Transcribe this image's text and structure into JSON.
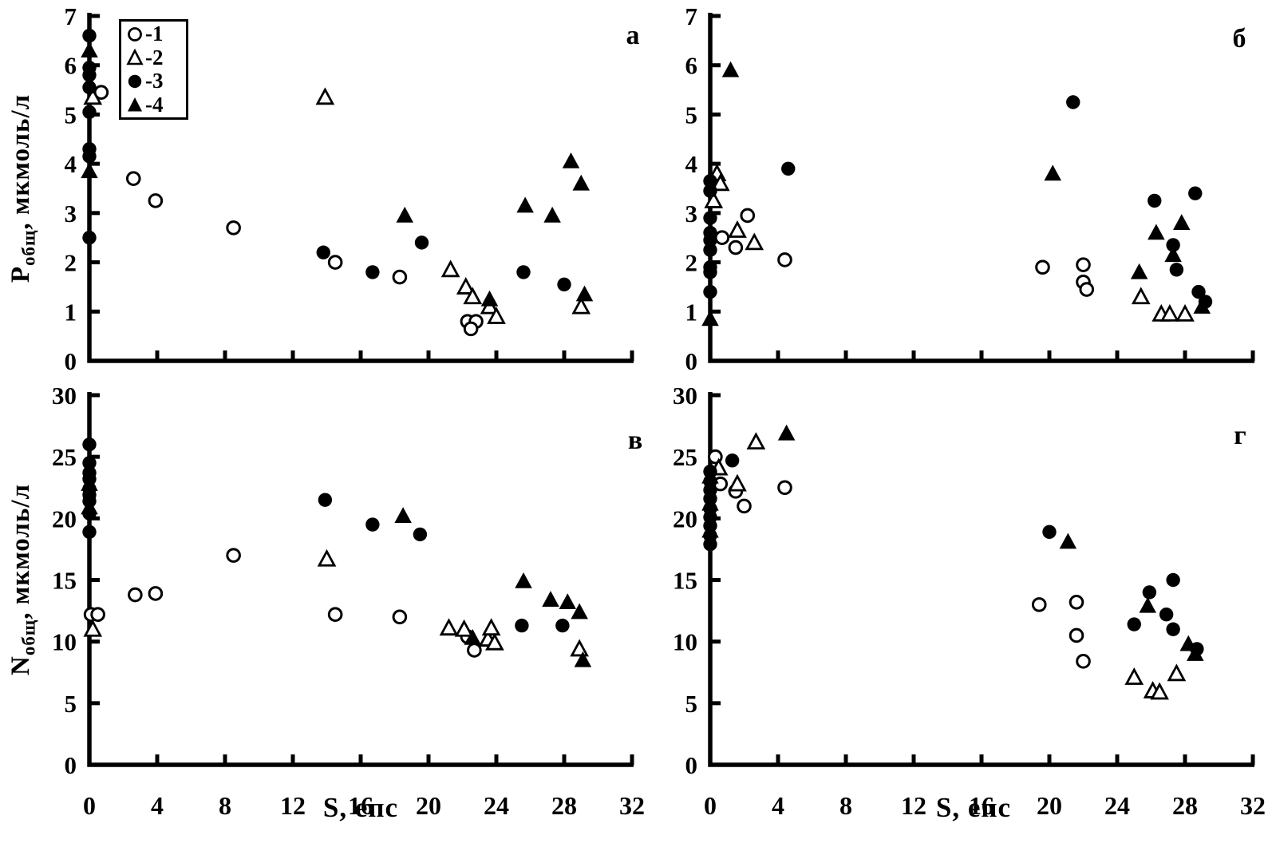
{
  "figure": {
    "x_axis_title": "S, епс",
    "y_axis_titles": [
      {
        "main": "P",
        "sub": "общ",
        "rest": ", мкмоль/л"
      },
      {
        "main": "N",
        "sub": "общ",
        "rest": ", мкмоль/л"
      }
    ],
    "background": "#ffffff",
    "ink_color": "#000000",
    "legend": {
      "position": "top-left-inside-panel-a",
      "entries": [
        {
          "marker": "open-circle",
          "label": "-1"
        },
        {
          "marker": "open-triangle",
          "label": "-2"
        },
        {
          "marker": "filled-circle",
          "label": "-3"
        },
        {
          "marker": "filled-triangle",
          "label": "-4"
        }
      ]
    }
  },
  "chart_data": [
    {
      "type": "scatter",
      "panel_label": "а",
      "position": "top-left",
      "xlabel": "S, епс",
      "ylabel": "Pобщ, мкмоль/л",
      "xlim": [
        0,
        32
      ],
      "ylim": [
        0,
        7
      ],
      "x_ticks": [
        0,
        4,
        8,
        12,
        16,
        20,
        24,
        28,
        32
      ],
      "y_ticks": [
        0,
        1,
        2,
        3,
        4,
        5,
        6,
        7
      ],
      "x_tick_labels_visible": false,
      "grid": false,
      "series": [
        {
          "name": "1",
          "marker": "circle",
          "filled": false,
          "points": [
            [
              0.7,
              5.45
            ],
            [
              2.6,
              3.7
            ],
            [
              3.9,
              3.25
            ],
            [
              8.5,
              2.7
            ],
            [
              14.5,
              2.0
            ],
            [
              18.3,
              1.7
            ],
            [
              22.3,
              0.8
            ],
            [
              22.8,
              0.8
            ],
            [
              22.5,
              0.65
            ]
          ]
        },
        {
          "name": "2",
          "marker": "triangle",
          "filled": false,
          "points": [
            [
              0.2,
              5.35
            ],
            [
              13.9,
              5.35
            ],
            [
              21.3,
              1.85
            ],
            [
              22.2,
              1.5
            ],
            [
              22.6,
              1.3
            ],
            [
              23.6,
              1.1
            ],
            [
              24.0,
              0.9
            ],
            [
              29.0,
              1.1
            ]
          ]
        },
        {
          "name": "3",
          "marker": "circle",
          "filled": true,
          "points": [
            [
              0,
              6.6
            ],
            [
              0,
              5.95
            ],
            [
              0,
              5.8
            ],
            [
              0,
              5.55
            ],
            [
              0,
              5.05
            ],
            [
              0,
              4.3
            ],
            [
              0,
              4.15
            ],
            [
              0,
              2.5
            ],
            [
              13.8,
              2.2
            ],
            [
              16.7,
              1.8
            ],
            [
              19.6,
              2.4
            ],
            [
              25.6,
              1.8
            ],
            [
              28.0,
              1.55
            ]
          ]
        },
        {
          "name": "4",
          "marker": "triangle",
          "filled": true,
          "points": [
            [
              0,
              6.3
            ],
            [
              0,
              3.85
            ],
            [
              18.6,
              2.95
            ],
            [
              23.6,
              1.25
            ],
            [
              25.7,
              3.15
            ],
            [
              27.3,
              2.95
            ],
            [
              28.4,
              4.05
            ],
            [
              29.0,
              3.6
            ],
            [
              29.2,
              1.35
            ]
          ]
        }
      ]
    },
    {
      "type": "scatter",
      "panel_label": "б",
      "position": "top-right",
      "xlabel": "S, епс",
      "ylabel": "Pобщ, мкмоль/л",
      "xlim": [
        0,
        32
      ],
      "ylim": [
        0,
        7
      ],
      "x_ticks": [
        0,
        4,
        8,
        12,
        16,
        20,
        24,
        28,
        32
      ],
      "y_ticks": [
        0,
        1,
        2,
        3,
        4,
        5,
        6,
        7
      ],
      "x_tick_labels_visible": false,
      "grid": false,
      "series": [
        {
          "name": "1",
          "marker": "circle",
          "filled": false,
          "points": [
            [
              0.7,
              2.5
            ],
            [
              1.5,
              2.3
            ],
            [
              2.2,
              2.95
            ],
            [
              4.4,
              2.05
            ],
            [
              19.6,
              1.9
            ],
            [
              22.0,
              1.95
            ],
            [
              22.0,
              1.6
            ],
            [
              22.2,
              1.45
            ]
          ]
        },
        {
          "name": "2",
          "marker": "triangle",
          "filled": false,
          "points": [
            [
              0.2,
              3.25
            ],
            [
              0.4,
              3.8
            ],
            [
              0.6,
              3.6
            ],
            [
              1.6,
              2.65
            ],
            [
              2.6,
              2.4
            ],
            [
              25.4,
              1.3
            ],
            [
              26.6,
              0.95
            ],
            [
              27.1,
              0.95
            ],
            [
              28.0,
              0.95
            ]
          ]
        },
        {
          "name": "3",
          "marker": "circle",
          "filled": true,
          "points": [
            [
              0,
              3.65
            ],
            [
              0,
              3.45
            ],
            [
              0,
              2.9
            ],
            [
              0,
              2.6
            ],
            [
              0,
              2.45
            ],
            [
              0,
              2.25
            ],
            [
              0,
              1.9
            ],
            [
              0,
              1.8
            ],
            [
              0,
              1.4
            ],
            [
              4.6,
              3.9
            ],
            [
              21.4,
              5.25
            ],
            [
              26.2,
              3.25
            ],
            [
              28.6,
              3.4
            ],
            [
              27.3,
              2.35
            ],
            [
              27.5,
              1.85
            ],
            [
              28.8,
              1.4
            ],
            [
              29.2,
              1.2
            ]
          ]
        },
        {
          "name": "4",
          "marker": "triangle",
          "filled": true,
          "points": [
            [
              0,
              0.85
            ],
            [
              1.2,
              5.9
            ],
            [
              20.2,
              3.8
            ],
            [
              25.3,
              1.8
            ],
            [
              26.3,
              2.6
            ],
            [
              27.3,
              2.15
            ],
            [
              27.8,
              2.8
            ],
            [
              29.0,
              1.1
            ]
          ]
        }
      ]
    },
    {
      "type": "scatter",
      "panel_label": "в",
      "position": "bottom-left",
      "xlabel": "S, епс",
      "ylabel": "Nобщ, мкмоль/л",
      "xlim": [
        0,
        32
      ],
      "ylim": [
        0,
        30
      ],
      "x_ticks": [
        0,
        4,
        8,
        12,
        16,
        20,
        24,
        28,
        32
      ],
      "y_ticks": [
        0,
        5,
        10,
        15,
        20,
        25,
        30
      ],
      "x_tick_labels_visible": true,
      "grid": false,
      "series": [
        {
          "name": "1",
          "marker": "circle",
          "filled": false,
          "points": [
            [
              0.1,
              12.2
            ],
            [
              0.5,
              12.2
            ],
            [
              2.7,
              13.8
            ],
            [
              3.9,
              13.9
            ],
            [
              8.5,
              17.0
            ],
            [
              14.5,
              12.2
            ],
            [
              18.3,
              12.0
            ],
            [
              22.3,
              10.4
            ],
            [
              22.7,
              9.3
            ]
          ]
        },
        {
          "name": "2",
          "marker": "triangle",
          "filled": false,
          "points": [
            [
              0.2,
              11.0
            ],
            [
              14.0,
              16.7
            ],
            [
              21.2,
              11.1
            ],
            [
              22.1,
              11.0
            ],
            [
              23.5,
              10.2
            ],
            [
              23.7,
              11.1
            ],
            [
              23.9,
              9.9
            ],
            [
              28.9,
              9.4
            ]
          ]
        },
        {
          "name": "3",
          "marker": "circle",
          "filled": true,
          "points": [
            [
              0,
              26.0
            ],
            [
              0,
              24.5
            ],
            [
              0,
              23.7
            ],
            [
              0,
              23.2
            ],
            [
              0,
              22.4
            ],
            [
              0,
              21.9
            ],
            [
              0,
              21.4
            ],
            [
              0,
              20.4
            ],
            [
              0,
              18.9
            ],
            [
              13.9,
              21.5
            ],
            [
              16.7,
              19.5
            ],
            [
              19.5,
              18.7
            ],
            [
              25.5,
              11.3
            ],
            [
              27.9,
              11.3
            ]
          ]
        },
        {
          "name": "4",
          "marker": "triangle",
          "filled": true,
          "points": [
            [
              0,
              22.8
            ],
            [
              0,
              20.9
            ],
            [
              18.5,
              20.2
            ],
            [
              22.6,
              10.3
            ],
            [
              25.6,
              14.9
            ],
            [
              27.2,
              13.4
            ],
            [
              28.2,
              13.2
            ],
            [
              28.9,
              12.4
            ],
            [
              29.1,
              8.5
            ]
          ]
        }
      ]
    },
    {
      "type": "scatter",
      "panel_label": "г",
      "position": "bottom-right",
      "xlabel": "S, епс",
      "ylabel": "Nобщ, мкмоль/л",
      "xlim": [
        0,
        32
      ],
      "ylim": [
        0,
        30
      ],
      "x_ticks": [
        0,
        4,
        8,
        12,
        16,
        20,
        24,
        28,
        32
      ],
      "y_ticks": [
        0,
        5,
        10,
        15,
        20,
        25,
        30
      ],
      "x_tick_labels_visible": true,
      "grid": false,
      "series": [
        {
          "name": "1",
          "marker": "circle",
          "filled": false,
          "points": [
            [
              0.3,
              25.0
            ],
            [
              0.6,
              22.8
            ],
            [
              1.5,
              22.2
            ],
            [
              2.0,
              21.0
            ],
            [
              4.4,
              22.5
            ],
            [
              19.4,
              13.0
            ],
            [
              21.6,
              13.2
            ],
            [
              21.6,
              10.5
            ],
            [
              22.0,
              8.4
            ]
          ]
        },
        {
          "name": "2",
          "marker": "triangle",
          "filled": false,
          "points": [
            [
              0.5,
              24.1
            ],
            [
              1.6,
              22.8
            ],
            [
              2.7,
              26.2
            ],
            [
              25.0,
              7.1
            ],
            [
              26.1,
              6.0
            ],
            [
              26.5,
              5.9
            ],
            [
              27.5,
              7.4
            ]
          ]
        },
        {
          "name": "3",
          "marker": "circle",
          "filled": true,
          "points": [
            [
              1.3,
              24.7
            ],
            [
              0,
              23.8
            ],
            [
              0,
              23.0
            ],
            [
              0,
              22.3
            ],
            [
              0,
              21.6
            ],
            [
              0,
              20.8
            ],
            [
              0,
              20.1
            ],
            [
              0,
              19.4
            ],
            [
              0,
              18.6
            ],
            [
              0,
              17.9
            ],
            [
              20.0,
              18.9
            ],
            [
              25.0,
              11.4
            ],
            [
              25.9,
              14.0
            ],
            [
              26.9,
              12.2
            ],
            [
              27.3,
              15.0
            ],
            [
              27.3,
              11.0
            ],
            [
              28.7,
              9.4
            ]
          ]
        },
        {
          "name": "4",
          "marker": "triangle",
          "filled": true,
          "points": [
            [
              0,
              23.4
            ],
            [
              0,
              21.2
            ],
            [
              0,
              19.0
            ],
            [
              4.5,
              26.9
            ],
            [
              21.1,
              18.1
            ],
            [
              25.8,
              12.9
            ],
            [
              28.2,
              9.8
            ],
            [
              28.6,
              9.0
            ]
          ]
        }
      ]
    }
  ]
}
